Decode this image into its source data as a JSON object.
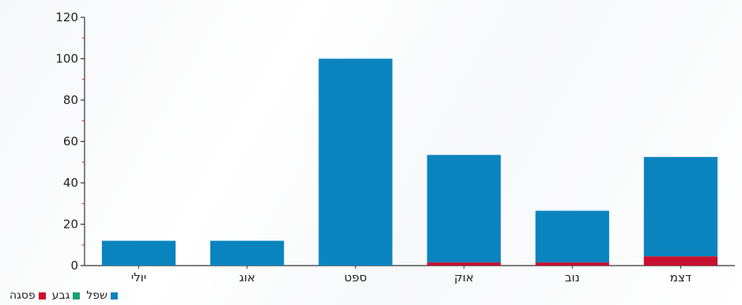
{
  "colors": {
    "axis": "#333333",
    "minor_tick": "#d8342c",
    "text": "#222222"
  },
  "chart_data": {
    "type": "bar",
    "stacked": true,
    "categories": [
      "יולי",
      "אוג",
      "ספט",
      "אוק",
      "נוב",
      "דצמ"
    ],
    "series": [
      {
        "name": "פסגה",
        "color": "#c8102e",
        "values": [
          0,
          0,
          0,
          1.5,
          1.5,
          4.5
        ]
      },
      {
        "name": "גבע",
        "color": "#1aa06d",
        "values": [
          0,
          0,
          0,
          0,
          0,
          0
        ]
      },
      {
        "name": "שפל",
        "color": "#0a84bf",
        "values": [
          12,
          12,
          100,
          52,
          25,
          48
        ]
      }
    ],
    "ylim": [
      0,
      120
    ],
    "yticks": [
      0,
      20,
      40,
      60,
      80,
      100,
      120
    ],
    "title": "",
    "xlabel": "",
    "ylabel": "",
    "grid": false,
    "legend_position": "bottom-left"
  },
  "legend": {
    "items": [
      {
        "label": "שפל",
        "color": "#0a84bf"
      },
      {
        "label": "גבע",
        "color": "#1aa06d"
      },
      {
        "label": "פסגה",
        "color": "#c8102e"
      }
    ]
  }
}
